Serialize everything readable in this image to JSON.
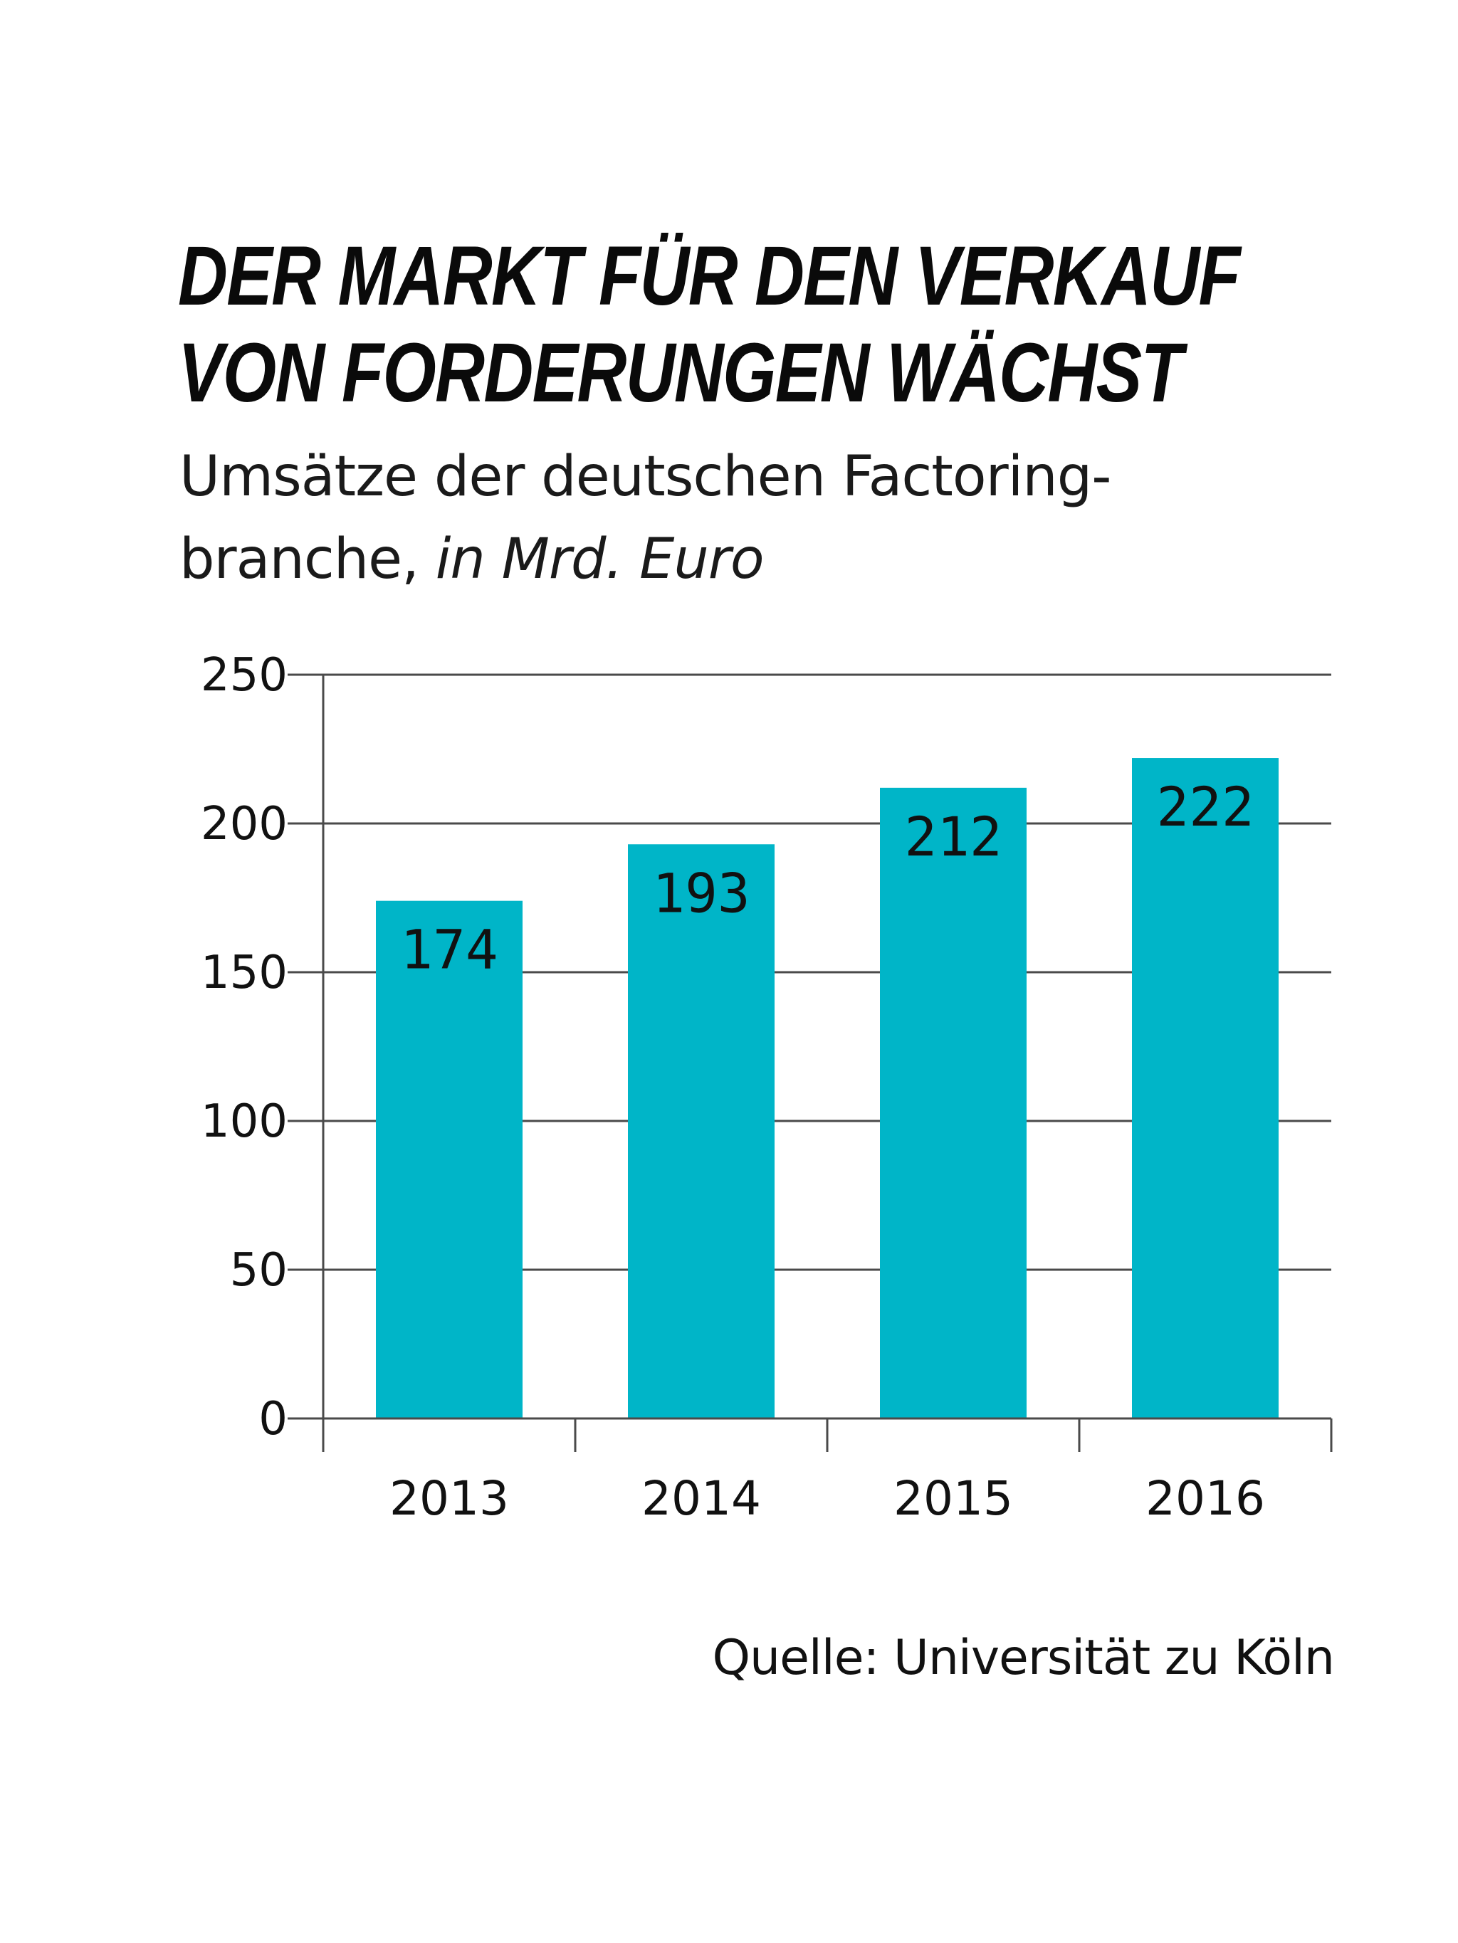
{
  "colors": {
    "bar": "#00b5c8",
    "grid": "#4a4a4a",
    "text": "#111111"
  },
  "chart_data": {
    "type": "bar",
    "title_lines": [
      "DER MARKT FÜR DEN VERKAUF",
      "VON FORDERUNGEN WÄCHST"
    ],
    "subtitle_lines": [
      "Umsätze der deutschen Factoring-",
      "branche,"
    ],
    "unit": "in Mrd. Euro",
    "categories": [
      "2013",
      "2014",
      "2015",
      "2016"
    ],
    "values": [
      174,
      193,
      212,
      222
    ],
    "data_labels": [
      "174",
      "193",
      "212",
      "222"
    ],
    "ylim": [
      0,
      250
    ],
    "yticks": [
      "0",
      "50",
      "100",
      "150",
      "200",
      "250"
    ],
    "grid": true,
    "source": "Quelle: Universität zu Köln"
  }
}
